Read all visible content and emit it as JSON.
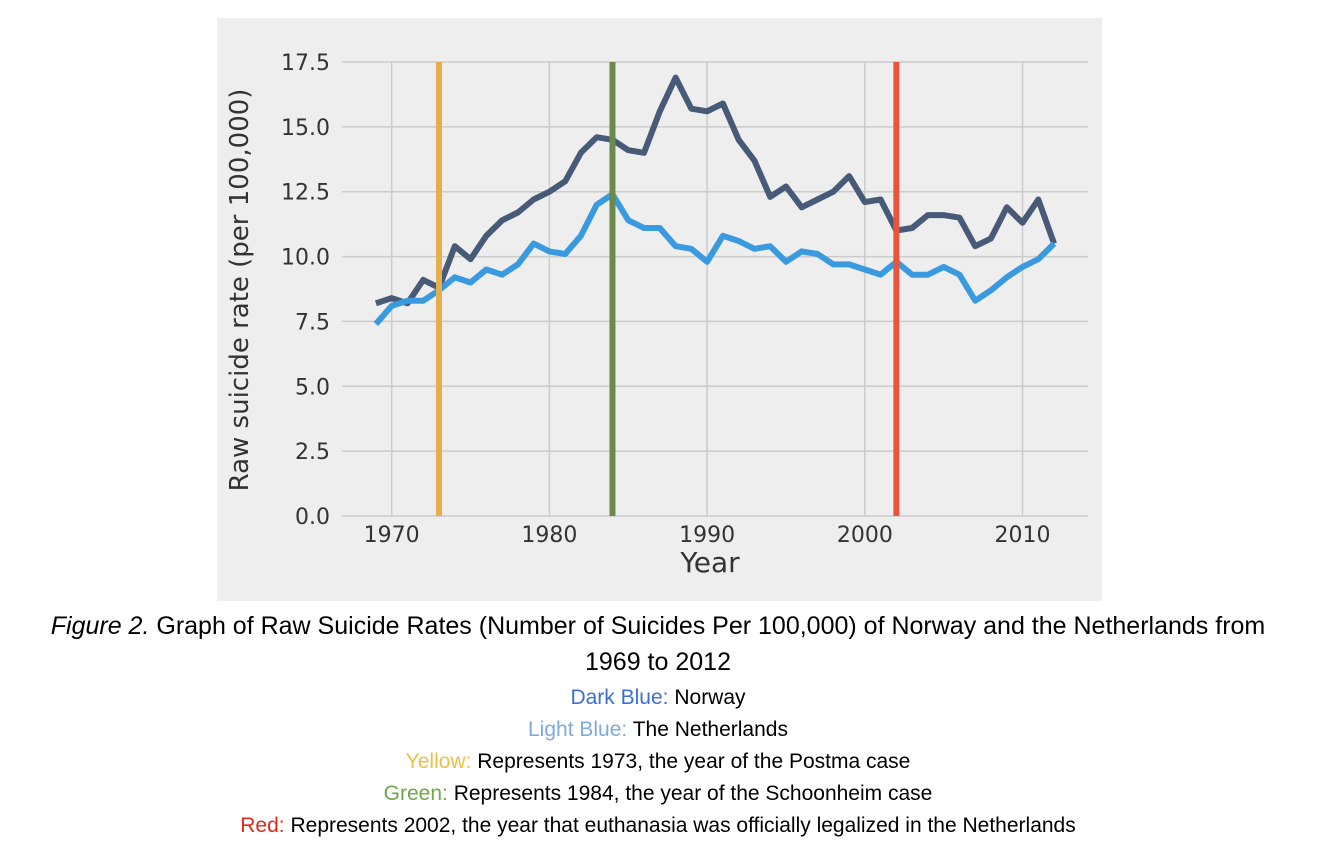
{
  "chart_data": {
    "type": "line",
    "xlabel": "Year",
    "ylabel": "Raw suicide rate (per 100,000)",
    "x": [
      1969,
      1970,
      1971,
      1972,
      1973,
      1974,
      1975,
      1976,
      1977,
      1978,
      1979,
      1980,
      1981,
      1982,
      1983,
      1984,
      1985,
      1986,
      1987,
      1988,
      1989,
      1990,
      1991,
      1992,
      1993,
      1994,
      1995,
      1996,
      1997,
      1998,
      1999,
      2000,
      2001,
      2002,
      2003,
      2004,
      2005,
      2006,
      2007,
      2008,
      2009,
      2010,
      2011,
      2012
    ],
    "series": [
      {
        "color": "#475a77",
        "values": [
          8.2,
          8.4,
          8.2,
          9.1,
          8.8,
          10.4,
          9.9,
          10.8,
          11.4,
          11.7,
          12.2,
          12.5,
          12.9,
          14.0,
          14.6,
          14.5,
          14.1,
          14.0,
          15.6,
          16.9,
          15.7,
          15.6,
          15.9,
          14.5,
          13.7,
          12.3,
          12.7,
          11.9,
          12.2,
          12.5,
          13.1,
          12.1,
          12.2,
          11.0,
          11.1,
          11.6,
          11.6,
          11.5,
          10.4,
          10.7,
          11.9,
          11.3,
          12.2,
          10.5
        ]
      },
      {
        "color": "#3a9ae0",
        "values": [
          7.4,
          8.1,
          8.3,
          8.3,
          8.7,
          9.2,
          9.0,
          9.5,
          9.3,
          9.7,
          10.5,
          10.2,
          10.1,
          10.8,
          12.0,
          12.4,
          11.4,
          11.1,
          11.1,
          10.4,
          10.3,
          9.8,
          10.8,
          10.6,
          10.3,
          10.4,
          9.8,
          10.2,
          10.1,
          9.7,
          9.7,
          9.5,
          9.3,
          9.8,
          9.3,
          9.3,
          9.6,
          9.3,
          8.3,
          8.7,
          9.2,
          9.6,
          9.9,
          10.5
        ]
      }
    ],
    "vlines": [
      {
        "x": 1973,
        "color": "#e5b04b"
      },
      {
        "x": 1984,
        "color": "#6b8a4b"
      },
      {
        "x": 2002,
        "color": "#e9543a"
      }
    ],
    "xlim": [
      1966.85,
      2014.15
    ],
    "xticks": [
      1970,
      1980,
      1990,
      2000,
      2010
    ],
    "ylim": [
      0,
      17.5
    ],
    "yticks": [
      {
        "value": 0,
        "label": "0.0"
      },
      2.5,
      {
        "value": 5,
        "label": "5.0"
      },
      7.5,
      {
        "value": 10,
        "label": "10.0"
      },
      12.5,
      {
        "value": 15,
        "label": "15.0"
      },
      17.5
    ],
    "grid": true
  },
  "caption": {
    "figure_label": "Figure 2.",
    "text": "Graph of Raw Suicide Rates (Number of Suicides Per 100,000) of Norway and the Netherlands from 1969 to 2012"
  },
  "notes": [
    {
      "label": "Dark Blue:",
      "color": "#3c6fd1",
      "text": "Norway"
    },
    {
      "label": "Light Blue:",
      "color": "#7eaadd",
      "text": "The Netherlands"
    },
    {
      "label": "Yellow:",
      "color": "#e8c04a",
      "text": "Represents 1973, the year of the Postma case"
    },
    {
      "label": "Green:",
      "color": "#6fa84b",
      "text": "Represents 1984, the year of the Schoonheim case"
    },
    {
      "label": "Red:",
      "color": "#e02a1c",
      "text": "Represents 2002, the year that euthanasia was officially legalized in the Netherlands"
    }
  ]
}
